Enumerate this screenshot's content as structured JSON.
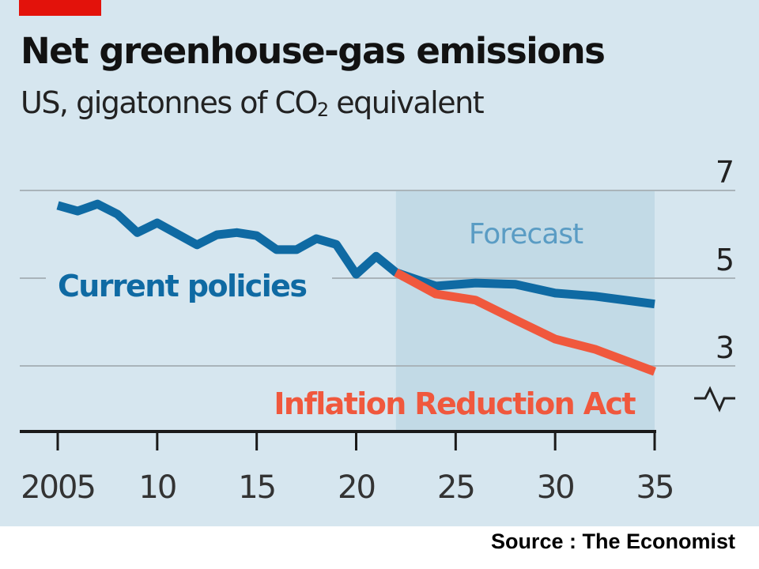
{
  "header": {
    "title": "Net greenhouse-gas emissions",
    "subtitle_prefix": "US, gigatonnes of CO",
    "subtitle_sub": "2",
    "subtitle_suffix": " equivalent"
  },
  "source": "Source : The Economist",
  "colors": {
    "background": "#d6e6ef",
    "forecast_band": "#c2dae6",
    "current_policies": "#0f6aa3",
    "ira": "#f0583d",
    "forecast_label": "#5a9cc4",
    "brand_red": "#e3120b"
  },
  "chart_data": {
    "type": "line",
    "title": "Net greenhouse-gas emissions",
    "subtitle": "US, gigatonnes of CO2 equivalent",
    "xlabel": "",
    "ylabel": "gigatonnes of CO2 equivalent",
    "xlim": [
      2005,
      2035
    ],
    "ylim": [
      2,
      7
    ],
    "y_axis_position": "right",
    "y_axis_break": true,
    "grid": true,
    "x_ticks": [
      2005,
      2010,
      2015,
      2020,
      2025,
      2030,
      2035
    ],
    "x_tick_labels": [
      "2005",
      "10",
      "15",
      "20",
      "25",
      "30",
      "35"
    ],
    "y_ticks": [
      3,
      5,
      7
    ],
    "y_tick_labels": [
      "3",
      "5",
      "7"
    ],
    "annotations": [
      {
        "text": "Forecast",
        "type": "shaded-region",
        "x_range": [
          2022,
          2035
        ]
      }
    ],
    "series": [
      {
        "name": "Current policies",
        "label_position": "below-line-left",
        "x": [
          2005,
          2006,
          2007,
          2008,
          2009,
          2010,
          2011,
          2012,
          2013,
          2014,
          2015,
          2016,
          2017,
          2018,
          2019,
          2020,
          2021,
          2022,
          2024,
          2026,
          2028,
          2030,
          2032,
          2035
        ],
        "values": [
          6.66,
          6.53,
          6.69,
          6.46,
          6.04,
          6.26,
          6.01,
          5.76,
          5.99,
          6.04,
          5.97,
          5.65,
          5.65,
          5.9,
          5.77,
          5.09,
          5.5,
          5.13,
          4.82,
          4.89,
          4.86,
          4.66,
          4.59,
          4.41
        ]
      },
      {
        "name": "Inflation Reduction Act",
        "label_position": "bottom",
        "x": [
          2022,
          2024,
          2026,
          2028,
          2030,
          2032,
          2035
        ],
        "values": [
          5.13,
          4.64,
          4.5,
          4.05,
          3.61,
          3.38,
          2.87
        ]
      }
    ]
  }
}
